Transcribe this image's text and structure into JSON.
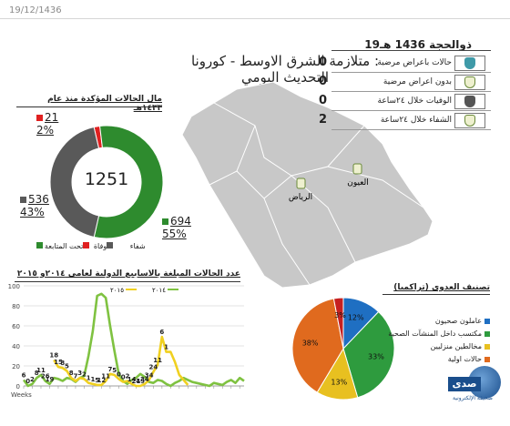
{
  "top_date": "19/12/1436",
  "title": {
    "line1": "متلازمة الشرق الاوسط - كورونا :",
    "line2": "التحديث اليومي"
  },
  "stats": {
    "hijri_date": "19ذوالحجة 1436 هـ",
    "rows": [
      {
        "label": "حالات باعراض مرضية",
        "value": "0",
        "color": "#3f9aa8"
      },
      {
        "label": "بدون اعراض مرضية",
        "value": "0",
        "color": "#eef0cf"
      },
      {
        "label": "الوفيات خلال ٢٤ساعة",
        "value": "0",
        "color": "#555555"
      },
      {
        "label": "الشفاء خلال ٢٤ساعة",
        "value": "2",
        "color": "#eef0cf"
      }
    ]
  },
  "map": {
    "cities": [
      {
        "name": "الرياض",
        "icon": "pin-icon"
      },
      {
        "name": "العيون",
        "icon": "pin-icon"
      }
    ]
  },
  "donut": {
    "section_title": "مال الحالات المؤكدة منذ عام ١٤٣٣هـ",
    "total": "1251",
    "segments": [
      {
        "name": "شفاء",
        "count": "694",
        "pct": "55%",
        "value": 694,
        "color": "#2e8b2e"
      },
      {
        "name": "وفاة",
        "count": "536",
        "pct": "43%",
        "value": 536,
        "color": "#595959"
      },
      {
        "name": "تحت المتابعة",
        "count": "21",
        "pct": "2%",
        "value": 21,
        "color": "#e02020"
      }
    ]
  },
  "chart_data": [
    {
      "type": "line",
      "title": "عدد الحالات المبلغة بالاسابيع الدولية لعامي ٢٠١٤و ٢٠١٥",
      "xlabel": "Weeks",
      "ylim": [
        0,
        100
      ],
      "yticks": [
        "0",
        "20",
        "40",
        "60",
        "80",
        "100"
      ],
      "series": [
        {
          "name": "٢٠١٤",
          "color": "#7fc241",
          "values": [
            6,
            0,
            2,
            8,
            11,
            5,
            2,
            8,
            7,
            5,
            8,
            7,
            4,
            8,
            10,
            30,
            55,
            90,
            92,
            88,
            60,
            35,
            12,
            5,
            2,
            6,
            8,
            12,
            9,
            4,
            3,
            6,
            5,
            2,
            0,
            3,
            5,
            8,
            6,
            4,
            3,
            2,
            1,
            0,
            3,
            2,
            1,
            4,
            6,
            3,
            8,
            5
          ]
        },
        {
          "name": "٢٠١٥",
          "color": "#f0d020",
          "values": [
            null,
            null,
            null,
            null,
            null,
            null,
            null,
            26,
            19,
            18,
            15,
            8,
            5,
            8,
            7,
            3,
            2,
            1,
            1,
            5,
            12,
            11,
            7,
            4,
            5,
            2,
            0,
            0,
            2,
            6,
            14,
            21,
            49,
            34,
            34,
            24,
            11,
            6,
            1,
            null,
            null,
            null,
            null,
            null,
            null,
            null,
            null,
            null,
            null,
            null,
            null,
            null
          ]
        }
      ],
      "data_labels": [
        "6",
        "0",
        "2",
        "8",
        "11",
        "26",
        "19",
        "18",
        "15",
        "8",
        "5",
        "8",
        "7",
        "3",
        "2",
        "1",
        "1",
        "5",
        "12",
        "11",
        "7",
        "5",
        "0",
        "0",
        "2",
        "14",
        "21",
        "49",
        "34",
        "34",
        "24",
        "11",
        "6",
        "1"
      ]
    },
    {
      "type": "pie",
      "title": "تصنيف العدوى (تراكميا)",
      "slices": [
        {
          "name": "عاملون صحيون",
          "value": 12,
          "label": "12%",
          "color": "#1f6fc2"
        },
        {
          "name": "مكتسب داخل المنشآت الصحية",
          "value": 33,
          "label": "33%",
          "color": "#2e9b3e"
        },
        {
          "name": "مخالطين منزليين",
          "value": 13,
          "label": "13%",
          "color": "#e8c020"
        },
        {
          "name": "حالات اولية",
          "value": 38,
          "label": "38%",
          "color": "#e06a1e"
        },
        {
          "name": "",
          "value": 3,
          "label": "3%",
          "color": "#c62020"
        }
      ]
    }
  ],
  "watermark": {
    "brand": "صدى",
    "sub": "صحيفة الإلكترونية"
  }
}
